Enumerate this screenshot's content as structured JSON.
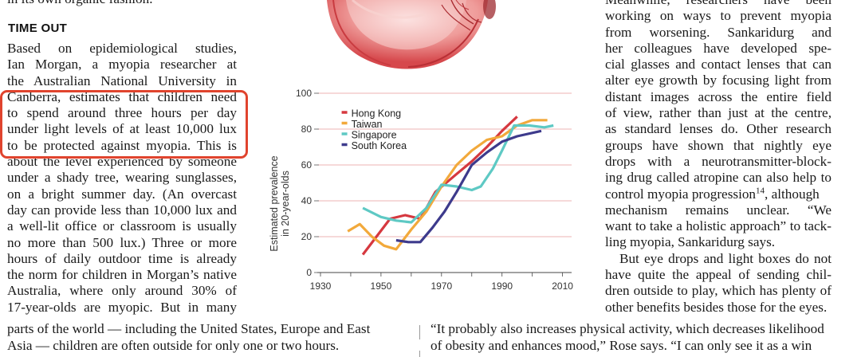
{
  "article": {
    "cut_top_line": "in its own organic fashion.",
    "heading": "TIME OUT",
    "left_lines": [
      "Based on epidemiological studies,",
      "Ian Morgan, a myopia researcher at",
      "the Australian National University in",
      "Canberra, estimates that children need",
      "to spend around three hours per day",
      "under light levels of at least 10,000 lux",
      "to be protected against myopia. This is",
      "about the level experienced by someone",
      "under a shady tree, wearing sunglasses,",
      "on a bright summer day. (An overcast",
      "day can provide less than 10,000 lux and",
      "a well-lit office or classroom is usually",
      "no more than 500 lux.) Three or more",
      "hours of daily outdoor time is already",
      "the norm for children in Morgan’s native",
      "Australia, where only around 30% of",
      "17-year-olds are myopic. But in many"
    ],
    "bottom_left_lines": [
      "parts of the world — including the United States, Europe and East",
      "Asia — children are often outside for only one or two hours."
    ],
    "right_top_partial": "Meanwhile, researchers have been",
    "right_lines": [
      "working on ways to prevent myopia",
      "from worsening. Sankaridurg and",
      "her colleagues have developed spe-",
      "cial glasses and contact lenses that can",
      "alter eye growth by focusing light from",
      "distant images across the entire field",
      "of view, rather than just at the centre,",
      "as standard lenses do. Other research",
      "groups have shown that nightly eye",
      "drops with a neurotransmitter-block-",
      "ing drug called atropine can also help to",
      "control myopia progression",
      "mechanism remains unclear. “We",
      "want to take a holistic approach” to tack-",
      "ling myopia, Sankaridurg says.",
      "But eye drops and light boxes do not",
      "have quite the appeal of sending chil-",
      "dren outside to play, which has plenty of",
      "other benefits besides those for the eyes."
    ],
    "citation_superscript": "14",
    "citation_tail": ", although",
    "bottom_right_lines": [
      "“It probably also increases physical activity, which decreases likelihood",
      "of obesity and enhances mood,” Rose says. “I can only see it as a win"
    ]
  },
  "chart_data": {
    "type": "line",
    "ylabel": "Estimated prevalence in 20-year-olds",
    "ylabel_lines": [
      "Estimated prevalence",
      "in 20-year-olds"
    ],
    "xlim": [
      1930,
      2013
    ],
    "ylim": [
      0,
      100
    ],
    "x_ticks": [
      1930,
      1950,
      1970,
      1990,
      2010
    ],
    "y_ticks": [
      0,
      20,
      40,
      60,
      80,
      100
    ],
    "grid": true,
    "legend_position": "top-left",
    "series": [
      {
        "name": "Hong Kong",
        "color": "#d6383f",
        "points": [
          [
            1944,
            10
          ],
          [
            1953,
            30
          ],
          [
            1958,
            32
          ],
          [
            1963,
            30
          ],
          [
            1968,
            45
          ],
          [
            1975,
            55
          ],
          [
            1980,
            62
          ],
          [
            1985,
            70
          ],
          [
            1990,
            79
          ],
          [
            1995,
            87
          ]
        ]
      },
      {
        "name": "Taiwan",
        "color": "#f2a93b",
        "points": [
          [
            1939,
            23
          ],
          [
            1943,
            27
          ],
          [
            1947,
            20
          ],
          [
            1951,
            15
          ],
          [
            1955,
            13
          ],
          [
            1960,
            24
          ],
          [
            1965,
            34
          ],
          [
            1970,
            48
          ],
          [
            1975,
            60
          ],
          [
            1980,
            68
          ],
          [
            1985,
            74
          ],
          [
            1990,
            76
          ],
          [
            1995,
            82
          ],
          [
            2000,
            85
          ],
          [
            2005,
            85
          ]
        ]
      },
      {
        "name": "Singapore",
        "color": "#5ec9c4",
        "points": [
          [
            1944,
            36
          ],
          [
            1950,
            31
          ],
          [
            1955,
            29
          ],
          [
            1960,
            28
          ],
          [
            1965,
            36
          ],
          [
            1970,
            49
          ],
          [
            1975,
            48
          ],
          [
            1980,
            46
          ],
          [
            1983,
            48
          ],
          [
            1987,
            58
          ],
          [
            1990,
            68
          ],
          [
            1994,
            82
          ],
          [
            1999,
            82
          ],
          [
            2004,
            81
          ],
          [
            2007,
            82
          ]
        ]
      },
      {
        "name": "South Korea",
        "color": "#3d3a8c",
        "points": [
          [
            1955,
            18
          ],
          [
            1959,
            17
          ],
          [
            1963,
            17
          ],
          [
            1967,
            25
          ],
          [
            1971,
            34
          ],
          [
            1975,
            45
          ],
          [
            1980,
            60
          ],
          [
            1985,
            67
          ],
          [
            1990,
            73
          ],
          [
            1995,
            76
          ],
          [
            2003,
            79
          ]
        ]
      }
    ]
  }
}
